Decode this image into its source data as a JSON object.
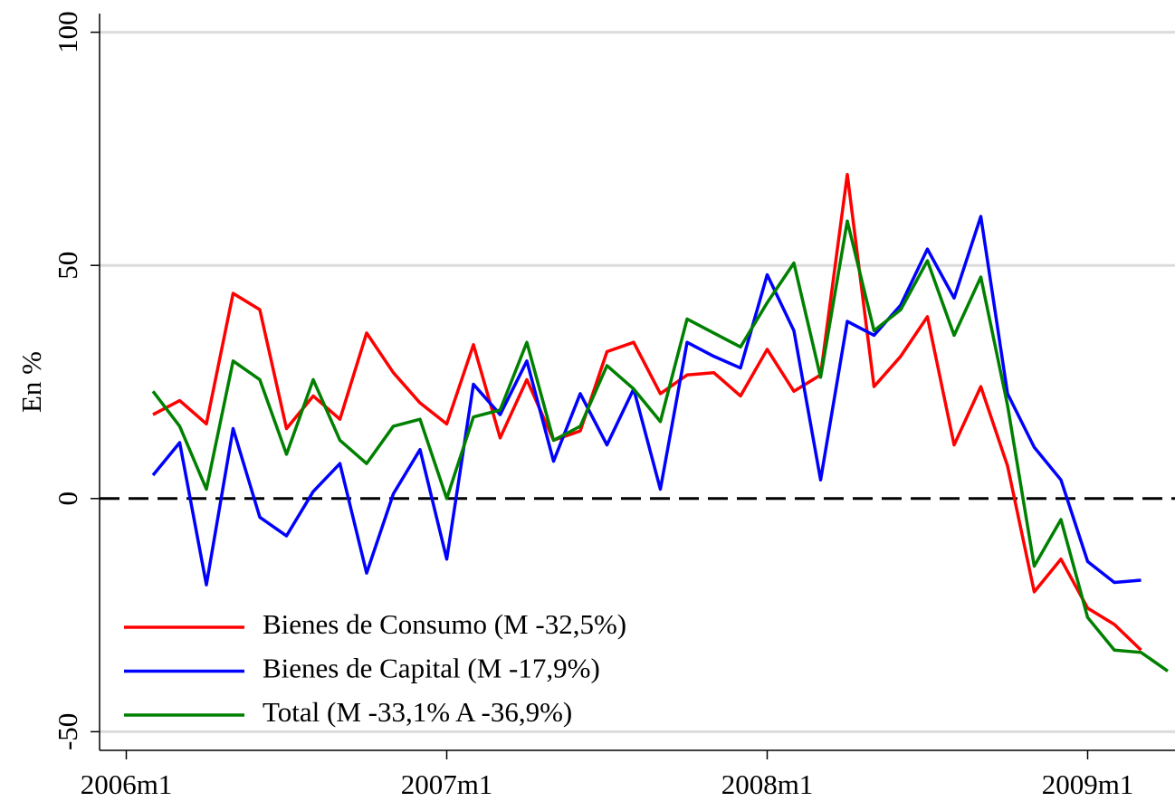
{
  "chart_data": {
    "type": "line",
    "y_label": "En %",
    "x": [
      "2006m2",
      "2006m3",
      "2006m4",
      "2006m5",
      "2006m6",
      "2006m7",
      "2006m8",
      "2006m9",
      "2006m10",
      "2006m11",
      "2006m12",
      "2007m1",
      "2007m2",
      "2007m3",
      "2007m4",
      "2007m5",
      "2007m6",
      "2007m7",
      "2007m8",
      "2007m9",
      "2007m10",
      "2007m11",
      "2007m12",
      "2008m1",
      "2008m2",
      "2008m3",
      "2008m4",
      "2008m5",
      "2008m6",
      "2008m7",
      "2008m8",
      "2008m9",
      "2008m10",
      "2008m11",
      "2008m12",
      "2009m1",
      "2009m2",
      "2009m3",
      "2009m4"
    ],
    "series": [
      {
        "name": "Bienes de Consumo (M -32,5%)",
        "color": "#ff0000",
        "values": [
          18,
          21,
          16,
          44,
          40.5,
          15,
          22,
          17,
          35.5,
          27,
          20.5,
          16,
          33,
          13,
          25.5,
          12.5,
          14.5,
          31.5,
          33.5,
          22.5,
          26.5,
          27,
          22,
          32,
          23,
          26.5,
          69.5,
          24,
          30.5,
          39,
          11.5,
          24,
          7,
          -20,
          -13,
          -23.5,
          -27,
          -32.5,
          null
        ]
      },
      {
        "name": "Bienes de Capital (M -17,9%)",
        "color": "#0000ff",
        "values": [
          5,
          12,
          -18.5,
          15,
          -4,
          -8,
          1.5,
          7.5,
          -16,
          1,
          10.5,
          -13,
          24.5,
          18,
          29.5,
          8,
          22.5,
          11.5,
          23.5,
          2,
          33.5,
          30.5,
          28,
          48,
          36,
          4,
          38,
          35,
          41.5,
          53.5,
          43,
          60.5,
          22.5,
          11,
          4,
          -13.5,
          -18,
          -17.5,
          null
        ]
      },
      {
        "name": "Total (M -33,1% A -36,9%)",
        "color": "#008000",
        "values": [
          23,
          15.5,
          2,
          29.5,
          25.5,
          9.5,
          25.5,
          12.5,
          7.5,
          15.5,
          17,
          0,
          17.5,
          19,
          33.5,
          12.5,
          15.5,
          28.5,
          23.5,
          16.5,
          38.5,
          35.5,
          32.5,
          42,
          50.5,
          26,
          59.5,
          36,
          40.5,
          51,
          35,
          47.5,
          20,
          -14.5,
          -4.5,
          -25.5,
          -32.5,
          -33,
          -37
        ]
      }
    ],
    "xlim": [
      "2005m12",
      "2009m4"
    ],
    "xticks": [
      "2006m1",
      "2007m1",
      "2008m1",
      "2009m1"
    ],
    "ylim": [
      -54,
      104
    ],
    "yticks": [
      -50,
      0,
      50,
      100
    ],
    "grid": true,
    "reference_line": 0,
    "legend": "lower left"
  }
}
